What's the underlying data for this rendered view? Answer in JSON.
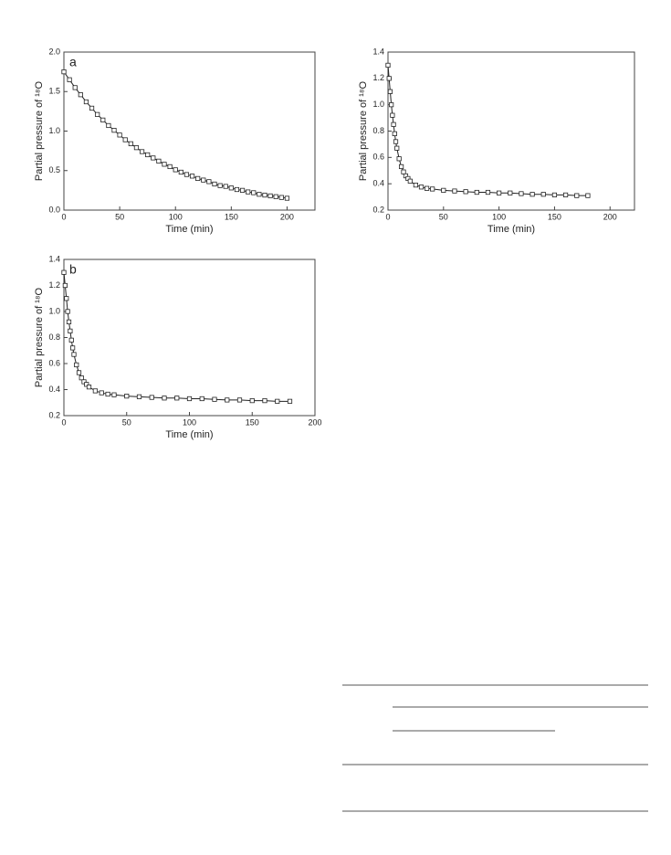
{
  "chart_data": [
    {
      "type": "scatter",
      "panel_label": "a",
      "xlabel": "Time (min)",
      "ylabel": "Partial pressure of ¹⁸O",
      "color": "#222222",
      "fit_line": true,
      "xlim": [
        0,
        225
      ],
      "ylim": [
        0,
        2
      ],
      "xticks": [
        0,
        50,
        100,
        150,
        200
      ],
      "yticks": [
        {
          "value": 0,
          "label": "0.0"
        },
        0.5,
        {
          "value": 1,
          "label": "1.0"
        },
        1.5,
        {
          "value": 2,
          "label": "2.0"
        }
      ],
      "x": [
        0,
        5,
        10,
        15,
        20,
        25,
        30,
        35,
        40,
        45,
        50,
        55,
        60,
        65,
        70,
        75,
        80,
        85,
        90,
        95,
        100,
        105,
        110,
        115,
        120,
        125,
        130,
        135,
        140,
        145,
        150,
        155,
        160,
        165,
        170,
        175,
        180,
        185,
        190,
        195,
        200
      ],
      "values": [
        1.75,
        1.65,
        1.55,
        1.46,
        1.37,
        1.29,
        1.21,
        1.14,
        1.07,
        1.01,
        0.95,
        0.89,
        0.84,
        0.79,
        0.74,
        0.7,
        0.66,
        0.62,
        0.58,
        0.55,
        0.51,
        0.48,
        0.45,
        0.43,
        0.4,
        0.38,
        0.36,
        0.33,
        0.31,
        0.3,
        0.28,
        0.26,
        0.25,
        0.23,
        0.22,
        0.2,
        0.19,
        0.18,
        0.17,
        0.16,
        0.15
      ]
    },
    {
      "type": "scatter",
      "xlabel": "Time (min)",
      "ylabel": "Partial pressure of ¹⁸O",
      "color": "#222222",
      "fit_line": true,
      "xlim": [
        0,
        222
      ],
      "ylim": [
        0.2,
        1.4
      ],
      "xticks": [
        0,
        50,
        100,
        150,
        200
      ],
      "yticks": [
        0.2,
        0.4,
        0.6,
        0.8,
        {
          "value": 1,
          "label": "1.0"
        },
        1.2,
        1.4
      ],
      "x": [
        0,
        1,
        2,
        3,
        4,
        5,
        6,
        7,
        8,
        10,
        12,
        14,
        16,
        18,
        20,
        25,
        30,
        35,
        40,
        50,
        60,
        70,
        80,
        90,
        100,
        110,
        120,
        130,
        140,
        150,
        160,
        170,
        180
      ],
      "values": [
        1.3,
        1.2,
        1.1,
        1.0,
        0.92,
        0.85,
        0.78,
        0.72,
        0.67,
        0.59,
        0.53,
        0.49,
        0.46,
        0.44,
        0.42,
        0.39,
        0.375,
        0.365,
        0.36,
        0.35,
        0.345,
        0.34,
        0.335,
        0.335,
        0.33,
        0.33,
        0.325,
        0.32,
        0.32,
        0.315,
        0.315,
        0.31,
        0.31
      ]
    },
    {
      "type": "scatter",
      "panel_label": "b",
      "xlabel": "Time (min)",
      "ylabel": "Partial pressure of ¹⁸O",
      "color": "#222222",
      "fit_line": true,
      "xlim": [
        0,
        200
      ],
      "ylim": [
        0.2,
        1.4
      ],
      "xticks": [
        0,
        50,
        100,
        150,
        200
      ],
      "yticks": [
        0.2,
        0.4,
        0.6,
        0.8,
        {
          "value": 1,
          "label": "1.0"
        },
        1.2,
        1.4
      ],
      "x": [
        0,
        1,
        2,
        3,
        4,
        5,
        6,
        7,
        8,
        10,
        12,
        14,
        16,
        18,
        20,
        25,
        30,
        35,
        40,
        50,
        60,
        70,
        80,
        90,
        100,
        110,
        120,
        130,
        140,
        150,
        160,
        170,
        180
      ],
      "values": [
        1.3,
        1.2,
        1.1,
        1.0,
        0.92,
        0.85,
        0.78,
        0.72,
        0.67,
        0.59,
        0.53,
        0.49,
        0.46,
        0.44,
        0.42,
        0.39,
        0.375,
        0.365,
        0.36,
        0.35,
        0.345,
        0.34,
        0.335,
        0.335,
        0.33,
        0.33,
        0.325,
        0.32,
        0.32,
        0.315,
        0.315,
        0.31,
        0.31
      ]
    }
  ]
}
